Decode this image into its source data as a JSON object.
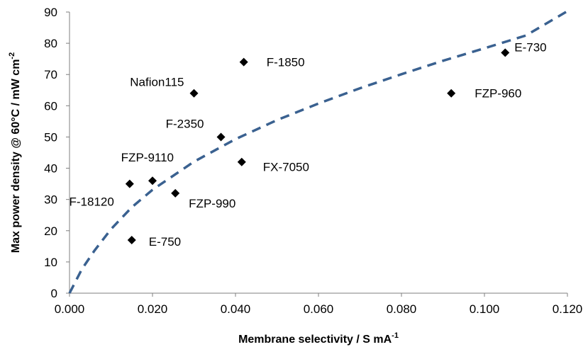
{
  "chart_data": {
    "type": "scatter",
    "xlabel": "Membrane selectivity / S mA",
    "xlabel_sup": "-1",
    "ylabel": "Max power density @ 60°C / mW cm",
    "ylabel_sup": "-2",
    "xlim": [
      0,
      0.12
    ],
    "ylim": [
      0,
      90
    ],
    "x_ticks": [
      "0.000",
      "0.020",
      "0.040",
      "0.060",
      "0.080",
      "0.100",
      "0.120"
    ],
    "y_ticks": [
      "0",
      "10",
      "20",
      "30",
      "40",
      "50",
      "60",
      "70",
      "80",
      "90"
    ],
    "grid": false,
    "legend": "none",
    "marker_color": "#000000",
    "trend_color": "#3A6190",
    "points": [
      {
        "label": "E-730",
        "x": 0.105,
        "y": 77
      },
      {
        "label": "F-1850",
        "x": 0.042,
        "y": 74
      },
      {
        "label": "Nafion115",
        "x": 0.03,
        "y": 64
      },
      {
        "label": "FZP-960",
        "x": 0.092,
        "y": 64
      },
      {
        "label": "F-2350",
        "x": 0.0365,
        "y": 50
      },
      {
        "label": "FX-7050",
        "x": 0.0415,
        "y": 42
      },
      {
        "label": "FZP-9110",
        "x": 0.02,
        "y": 36
      },
      {
        "label": "F-18120",
        "x": 0.0145,
        "y": 35
      },
      {
        "label": "FZP-990",
        "x": 0.0255,
        "y": 32
      },
      {
        "label": "E-750",
        "x": 0.015,
        "y": 17
      }
    ],
    "trendline": {
      "style": "dashed",
      "x": [
        0.0,
        0.003,
        0.006,
        0.01,
        0.015,
        0.02,
        0.03,
        0.04,
        0.05,
        0.06,
        0.07,
        0.08,
        0.09,
        0.1,
        0.11,
        0.12
      ],
      "y": [
        0.0,
        7.7,
        13.6,
        20.5,
        27.5,
        33.1,
        42.1,
        49.3,
        55.4,
        60.7,
        65.6,
        70.1,
        74.4,
        78.4,
        82.5,
        90.3
      ]
    }
  }
}
